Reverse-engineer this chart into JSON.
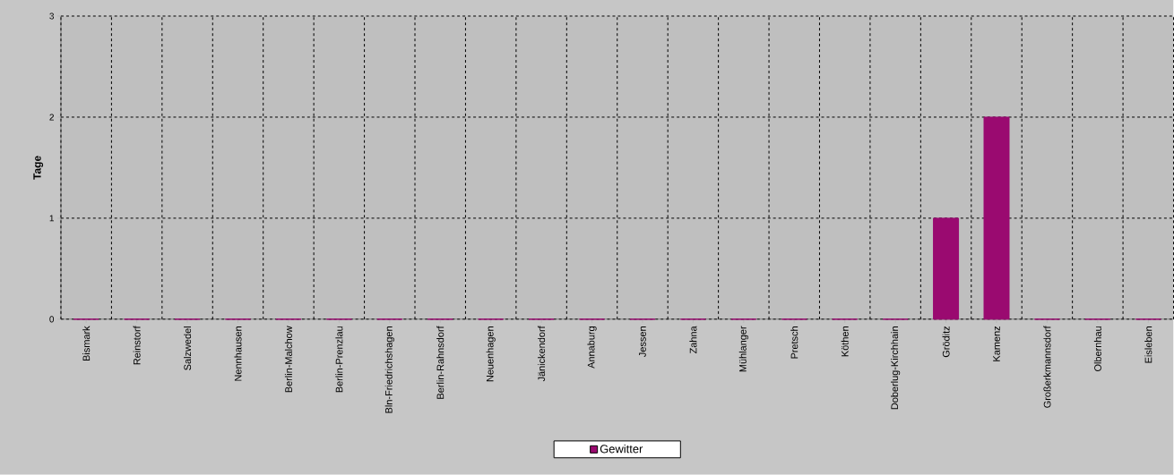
{
  "chart_data": {
    "type": "bar",
    "ylabel": "Tage",
    "categories": [
      "Bismark",
      "Reinstorf",
      "Salzwedel",
      "Nennhausen",
      "Berlin-Malchow",
      "Berlin-Prenzlau",
      "Bln-Friedrichshagen",
      "Berlin-Rahnsdorf",
      "Neuenhagen",
      "Jänickendorf",
      "Annaburg",
      "Jessen",
      "Zahna",
      "Mühlanger",
      "Pretsch",
      "Köthen",
      "Doberlug-Kirchhain",
      "Gröditz",
      "Kamenz",
      "Großerkmannsdorf",
      "Olbernhau",
      "Eisleben"
    ],
    "series": [
      {
        "name": "Gewitter",
        "color": "#9a0a70",
        "values": [
          0,
          0,
          0,
          0,
          0,
          0,
          0,
          0,
          0,
          0,
          0,
          0,
          0,
          0,
          0,
          0,
          0,
          1,
          2,
          0,
          0,
          0
        ]
      }
    ],
    "ylim": [
      0,
      3
    ],
    "yticks": [
      0,
      1,
      2,
      3
    ],
    "grid": true,
    "legend": "bottom"
  }
}
